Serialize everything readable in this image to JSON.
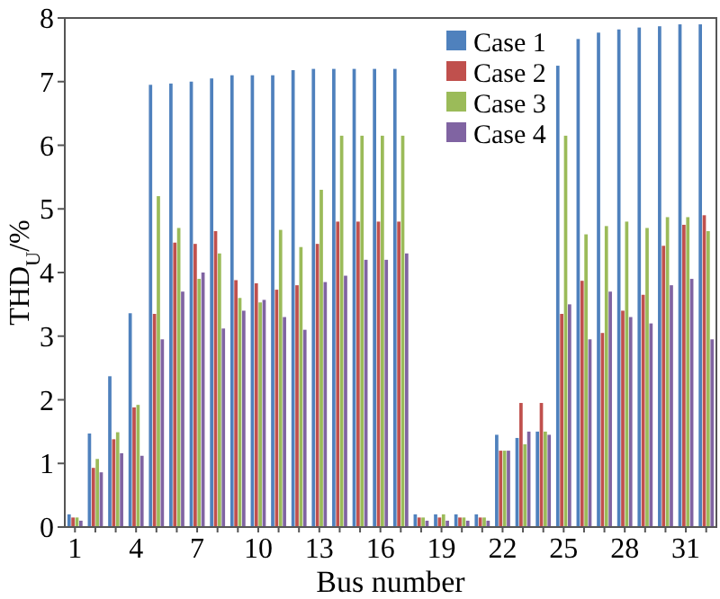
{
  "chart_data": {
    "type": "bar",
    "xlabel": "Bus number",
    "ylabel": "THD$_{U}$/%",
    "categories": [
      "1",
      null,
      null,
      "4",
      null,
      null,
      "7",
      null,
      null,
      "10",
      null,
      null,
      "13",
      null,
      null,
      "16",
      null,
      null,
      "19",
      null,
      null,
      "22",
      null,
      null,
      "25",
      null,
      null,
      "28",
      null,
      null,
      "31",
      null
    ],
    "series": [
      {
        "name": "Case 1",
        "color": "#4f81bd",
        "values": [
          0.2,
          1.47,
          2.37,
          3.36,
          6.95,
          6.97,
          7.0,
          7.05,
          7.1,
          7.1,
          7.1,
          7.18,
          7.2,
          7.2,
          7.2,
          7.2,
          7.2,
          0.2,
          0.2,
          0.2,
          0.2,
          1.45,
          1.4,
          1.5,
          7.25,
          7.67,
          7.77,
          7.82,
          7.85,
          7.87,
          7.9,
          7.9
        ]
      },
      {
        "name": "Case 2",
        "color": "#c0504d",
        "values": [
          0.15,
          0.93,
          1.38,
          1.88,
          3.35,
          4.47,
          4.45,
          4.65,
          3.88,
          3.83,
          3.73,
          3.8,
          4.45,
          4.8,
          4.8,
          4.8,
          4.8,
          0.15,
          0.15,
          0.15,
          0.15,
          1.2,
          1.95,
          1.95,
          3.35,
          3.87,
          3.05,
          3.4,
          3.65,
          4.42,
          4.75,
          4.9
        ]
      },
      {
        "name": "Case 3",
        "color": "#9bbb59",
        "values": [
          0.15,
          1.07,
          1.49,
          1.92,
          5.2,
          4.7,
          3.9,
          4.3,
          3.6,
          3.53,
          4.67,
          4.4,
          5.3,
          6.15,
          6.15,
          6.15,
          6.15,
          0.15,
          0.2,
          0.15,
          0.15,
          1.2,
          1.3,
          1.5,
          6.15,
          4.6,
          4.73,
          4.8,
          4.7,
          4.87,
          4.87,
          4.65
        ]
      },
      {
        "name": "Case 4",
        "color": "#8064a2",
        "values": [
          0.1,
          0.86,
          1.16,
          1.12,
          2.95,
          3.7,
          4.0,
          3.12,
          3.4,
          3.57,
          3.3,
          3.1,
          3.85,
          3.95,
          4.2,
          4.2,
          4.3,
          0.1,
          0.1,
          0.1,
          0.1,
          1.2,
          1.5,
          1.45,
          3.5,
          2.95,
          3.7,
          3.3,
          3.2,
          3.8,
          3.9,
          2.95
        ]
      }
    ],
    "ylim": [
      0,
      8
    ],
    "yticks": [
      0,
      1,
      2,
      3,
      4,
      5,
      6,
      7,
      8
    ],
    "grid": false,
    "legend": "top right"
  }
}
